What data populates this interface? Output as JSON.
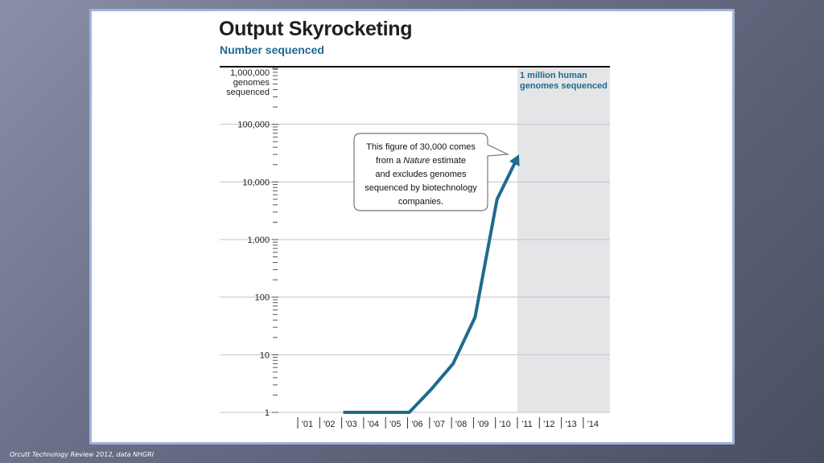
{
  "slide": {
    "source_credit": "Orcutt Technology Review 2012, data NHGRI"
  },
  "chart_data": {
    "type": "line",
    "title": "Output Skyrocketing",
    "subtitle": "Number sequenced",
    "ylabel": "",
    "xlabel": "",
    "yscale": "log",
    "ylim": [
      1,
      1000000
    ],
    "y_tick_labels": [
      "1",
      "10",
      "100",
      "1,000",
      "10,000",
      "100,000",
      "1,000,000"
    ],
    "y_top_label_lines": [
      "1,000,000",
      "genomes",
      "sequenced"
    ],
    "x_tick_labels": [
      "'01",
      "'02",
      "'03",
      "'04",
      "'05",
      "'06",
      "'07",
      "'08",
      "'09",
      "'10",
      "'11",
      "'12",
      "'13",
      "'14"
    ],
    "grid": true,
    "series": [
      {
        "color": "#1f6a8f",
        "points": [
          {
            "x": "'03",
            "y": 1
          },
          {
            "x": "'04",
            "y": 1
          },
          {
            "x": "'05",
            "y": 1
          },
          {
            "x": "'06",
            "y": 1
          },
          {
            "x": "'07",
            "y": 2.5
          },
          {
            "x": "'08",
            "y": 7
          },
          {
            "x": "'09",
            "y": 45
          },
          {
            "x": "'10",
            "y": 5000
          },
          {
            "x": "'11",
            "y": 30000
          }
        ]
      }
    ],
    "shaded_region": {
      "from": "'11",
      "to": "'14",
      "label_lines": [
        "1 million human",
        "genomes sequenced"
      ]
    },
    "callout": {
      "lines": [
        [
          {
            "text": "This figure of 30,000 comes"
          }
        ],
        [
          {
            "text": "from a "
          },
          {
            "text": "Nature",
            "italic": true
          },
          {
            "text": " estimate"
          }
        ],
        [
          {
            "text": "and excludes genomes"
          }
        ],
        [
          {
            "text": "sequenced by biotechnology"
          }
        ],
        [
          {
            "text": "companies."
          }
        ]
      ],
      "points_to": {
        "x": "'11",
        "y": 30000
      }
    }
  }
}
